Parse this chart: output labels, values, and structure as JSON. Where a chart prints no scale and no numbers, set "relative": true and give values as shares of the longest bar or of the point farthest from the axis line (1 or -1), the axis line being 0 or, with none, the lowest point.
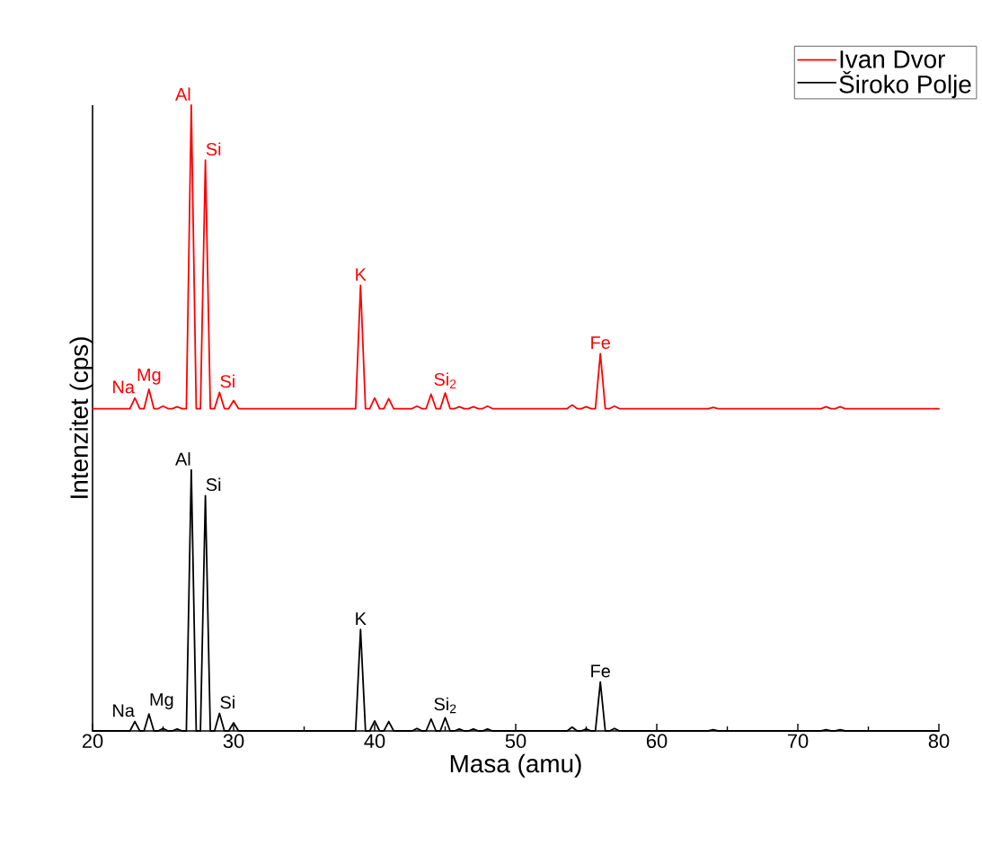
{
  "chart_data": {
    "type": "line",
    "relative": true,
    "xlabel": "Masa (amu)",
    "ylabel": "Intenzitet (cps)",
    "xlim": [
      20,
      80
    ],
    "xticks": [
      20,
      30,
      40,
      50,
      60,
      70,
      80
    ],
    "legend": "top right",
    "marker": "none",
    "line_style": "solid",
    "series": [
      {
        "name": "Ivan Dvor",
        "color": "#ff0000",
        "x": [
          20,
          22.65,
          23,
          23.35,
          23.65,
          24,
          24.35,
          24.65,
          25,
          25.35,
          25.65,
          26,
          26.35,
          26.65,
          27,
          27.35,
          27.65,
          28,
          28.35,
          28.65,
          29,
          29.35,
          29.65,
          30,
          30.35,
          38.65,
          39,
          39.35,
          39.65,
          40,
          40.35,
          40.65,
          41,
          41.35,
          42.65,
          43,
          43.35,
          43.65,
          44,
          44.35,
          44.65,
          45,
          45.35,
          45.65,
          46,
          46.35,
          46.65,
          47,
          47.35,
          47.65,
          48,
          48.35,
          53.65,
          54,
          54.35,
          54.65,
          55,
          55.35,
          55.65,
          56,
          56.35,
          56.65,
          57,
          57.35,
          63.65,
          64,
          64.35,
          71.65,
          72,
          72.35,
          72.65,
          73,
          73.35,
          80
        ],
        "values": [
          0.515,
          0.515,
          0.532,
          0.515,
          0.515,
          0.546,
          0.515,
          0.515,
          0.519,
          0.515,
          0.515,
          0.518,
          0.515,
          0.515,
          1.0,
          0.515,
          0.515,
          0.912,
          0.515,
          0.515,
          0.541,
          0.515,
          0.515,
          0.528,
          0.515,
          0.515,
          0.712,
          0.515,
          0.515,
          0.532,
          0.515,
          0.515,
          0.531,
          0.515,
          0.515,
          0.519,
          0.515,
          0.515,
          0.538,
          0.515,
          0.515,
          0.54,
          0.515,
          0.515,
          0.518,
          0.515,
          0.515,
          0.518,
          0.515,
          0.515,
          0.519,
          0.515,
          0.515,
          0.521,
          0.515,
          0.515,
          0.518,
          0.515,
          0.515,
          0.603,
          0.515,
          0.515,
          0.519,
          0.515,
          0.515,
          0.517,
          0.515,
          0.515,
          0.518,
          0.515,
          0.515,
          0.518,
          0.515,
          0.515
        ]
      },
      {
        "name": "Široko Polje",
        "color": "#000000",
        "x": [
          20,
          22.65,
          23,
          23.35,
          23.65,
          24,
          24.35,
          24.65,
          25,
          25.35,
          25.65,
          26,
          26.35,
          26.65,
          27,
          27.35,
          27.65,
          28,
          28.35,
          28.65,
          29,
          29.35,
          29.65,
          30,
          30.35,
          38.65,
          39,
          39.35,
          39.65,
          40,
          40.35,
          40.65,
          41,
          41.35,
          42.65,
          43,
          43.35,
          43.65,
          44,
          44.35,
          44.65,
          45,
          45.35,
          45.65,
          46,
          46.35,
          46.65,
          47,
          47.35,
          47.65,
          48,
          48.35,
          53.65,
          54,
          54.35,
          54.65,
          55,
          55.35,
          55.65,
          56,
          56.35,
          56.65,
          57,
          57.35,
          63.65,
          64,
          64.35,
          71.65,
          72,
          72.35,
          72.65,
          73,
          73.35,
          80
        ],
        "values": [
          0,
          0,
          0.015,
          0,
          0,
          0.027,
          0,
          0,
          0.004,
          0,
          0,
          0.003,
          0,
          0,
          0.417,
          0,
          0,
          0.376,
          0,
          0,
          0.028,
          0,
          0,
          0.013,
          0,
          0,
          0.162,
          0,
          0,
          0.016,
          0,
          0,
          0.015,
          0,
          0,
          0.004,
          0,
          0,
          0.019,
          0,
          0,
          0.021,
          0,
          0,
          0.003,
          0,
          0,
          0.003,
          0,
          0,
          0.003,
          0,
          0,
          0.006,
          0,
          0,
          0.003,
          0,
          0,
          0.078,
          0,
          0,
          0.004,
          0,
          0,
          0.002,
          0,
          0,
          0.002,
          0,
          0,
          0.002,
          0,
          0
        ]
      }
    ],
    "annotations": [
      {
        "text": "Na",
        "x": 23,
        "y": 0.532
      },
      {
        "text": "Mg",
        "x": 24,
        "y": 0.546
      },
      {
        "text": "Al",
        "x": 27,
        "y": 1.0
      },
      {
        "text": "Si",
        "x": 28,
        "y": 0.912
      },
      {
        "text": "Si",
        "x": 29,
        "y": 0.541
      },
      {
        "text": "K",
        "x": 39,
        "y": 0.712
      },
      {
        "text": "Si$_{2}$",
        "x": 45,
        "y": 0.54
      },
      {
        "text": "Fe",
        "x": 56,
        "y": 0.603
      },
      {
        "text": "Na",
        "x": 23,
        "y": 0.015
      },
      {
        "text": "Mg",
        "x": 24,
        "y": 0.027
      },
      {
        "text": "Al",
        "x": 27,
        "y": 0.417
      },
      {
        "text": "Si",
        "x": 28,
        "y": 0.376
      },
      {
        "text": "Si",
        "x": 29,
        "y": 0.028
      },
      {
        "text": "K",
        "x": 39,
        "y": 0.162
      },
      {
        "text": "Si$_{2}$",
        "x": 45,
        "y": 0.021
      },
      {
        "text": "Fe",
        "x": 56,
        "y": 0.078
      }
    ]
  }
}
